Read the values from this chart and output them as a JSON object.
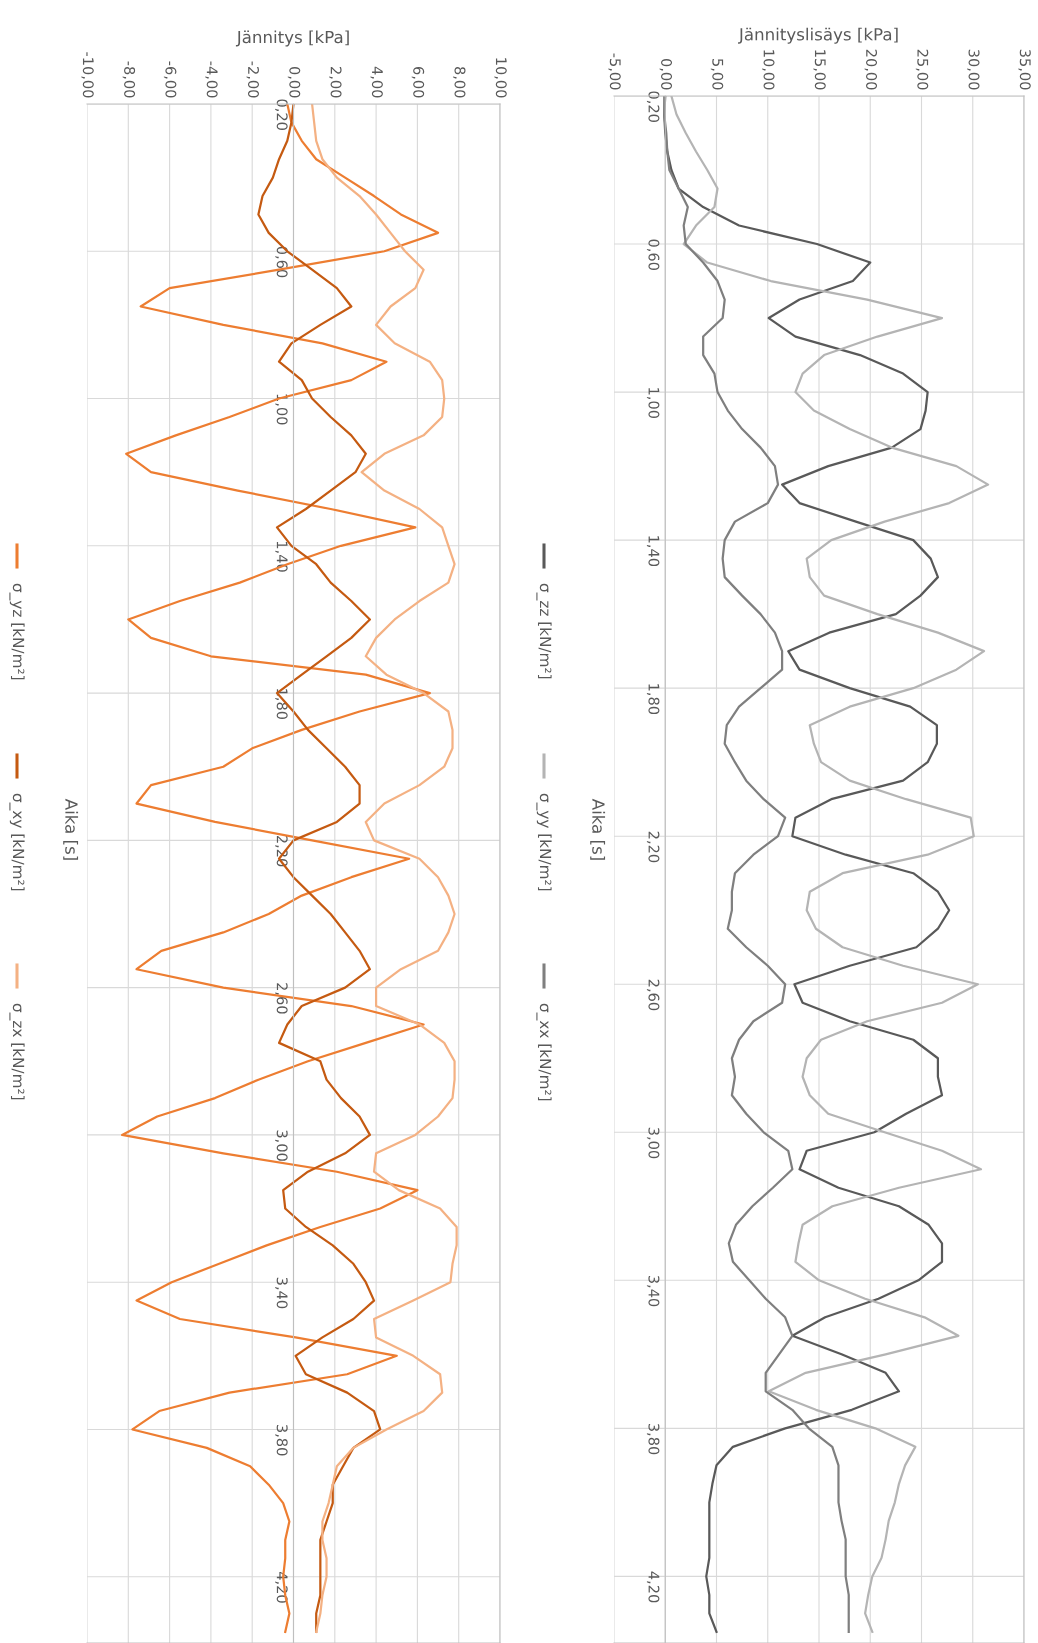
{
  "chart_data": [
    {
      "type": "line",
      "xlabel": "Jännityslisäys [kPa]",
      "ylabel": "Aika [s]",
      "grid": true,
      "legend": "left",
      "ylim": [
        4.38,
        0.2
      ],
      "yticks": [
        {
          "value": 0.2,
          "label": "0,20"
        },
        {
          "value": 0.6,
          "label": "0,60"
        },
        {
          "value": 1.0,
          "label": "1,00"
        },
        {
          "value": 1.4,
          "label": "1,40"
        },
        {
          "value": 1.8,
          "label": "1,80"
        },
        {
          "value": 2.2,
          "label": "2,20"
        },
        {
          "value": 2.6,
          "label": "2,60"
        },
        {
          "value": 3.0,
          "label": "3,00"
        },
        {
          "value": 3.4,
          "label": "3,40"
        },
        {
          "value": 3.8,
          "label": "3,80"
        },
        {
          "value": 4.2,
          "label": "4,20"
        }
      ],
      "xlim": [
        -5,
        35
      ],
      "xticks": [
        {
          "value": -5,
          "label": "-5,00"
        },
        {
          "value": 0,
          "label": "0,00"
        },
        {
          "value": 5,
          "label": "5,00"
        },
        {
          "value": 10,
          "label": "10,00"
        },
        {
          "value": 15,
          "label": "15,00"
        },
        {
          "value": 20,
          "label": "20,00"
        },
        {
          "value": 25,
          "label": "25,00"
        },
        {
          "value": 30,
          "label": "30,00"
        },
        {
          "value": 35,
          "label": "35,00"
        }
      ],
      "series": [
        {
          "name": "σ_zz [kN/m²]",
          "color": "#595959",
          "x": [
            0,
            -0.1,
            0,
            0.2,
            0.6,
            1.3,
            3.7,
            7.2,
            14.8,
            20.0,
            18.3,
            13.1,
            10.1,
            12.7,
            19.0,
            23.2,
            25.6,
            25.4,
            24.9,
            22.1,
            15.9,
            11.4,
            13.1,
            18.6,
            24.2,
            25.9,
            26.6,
            24.9,
            22.5,
            16.0,
            12.0,
            13.1,
            18.0,
            23.9,
            26.5,
            26.5,
            25.6,
            23.2,
            16.2,
            12.7,
            12.4,
            17.6,
            24.2,
            26.6,
            27.7,
            26.6,
            24.5,
            18.0,
            12.6,
            13.4,
            18.0,
            24.2,
            26.6,
            26.6,
            27.0,
            23.5,
            20.4,
            13.8,
            13.1,
            16.9,
            22.8,
            25.7,
            27.0,
            27.0,
            24.7,
            20.8,
            15.6,
            12.4,
            17.2,
            21.5,
            22.8,
            18.2,
            11.7,
            6.6,
            5.0,
            4.6,
            4.3,
            4.3,
            4.3,
            4.3,
            4.0,
            4.3,
            4.3,
            5.0
          ],
          "values": [
            0.2,
            0.25,
            0.3,
            0.35,
            0.4,
            0.45,
            0.5,
            0.55,
            0.6,
            0.65,
            0.7,
            0.75,
            0.8,
            0.85,
            0.9,
            0.95,
            1.0,
            1.05,
            1.1,
            1.15,
            1.2,
            1.25,
            1.3,
            1.35,
            1.4,
            1.45,
            1.5,
            1.55,
            1.6,
            1.65,
            1.7,
            1.75,
            1.8,
            1.85,
            1.9,
            1.95,
            2.0,
            2.05,
            2.1,
            2.15,
            2.2,
            2.25,
            2.3,
            2.35,
            2.4,
            2.45,
            2.5,
            2.55,
            2.6,
            2.65,
            2.7,
            2.75,
            2.8,
            2.85,
            2.9,
            2.95,
            3.0,
            3.05,
            3.1,
            3.15,
            3.2,
            3.25,
            3.3,
            3.35,
            3.4,
            3.45,
            3.5,
            3.55,
            3.6,
            3.65,
            3.7,
            3.75,
            3.8,
            3.85,
            3.9,
            3.95,
            4.0,
            4.05,
            4.1,
            4.15,
            4.2,
            4.25,
            4.3,
            4.35
          ]
        },
        {
          "name": "σ_yy [kN/m²]",
          "color": "#b4b4b4",
          "x": [
            0.6,
            1.1,
            2.0,
            3.0,
            4.1,
            5.1,
            4.8,
            3.0,
            1.8,
            4.1,
            10.3,
            19.7,
            27.0,
            20.7,
            15.5,
            13.4,
            12.7,
            14.5,
            18.0,
            22.1,
            28.4,
            31.5,
            27.7,
            21.4,
            16.2,
            13.8,
            14.1,
            15.5,
            20.7,
            26.6,
            31.1,
            28.4,
            24.2,
            18.0,
            14.1,
            14.5,
            15.2,
            18.0,
            23.5,
            29.8,
            30.1,
            25.6,
            17.3,
            14.1,
            13.8,
            14.7,
            17.3,
            23.2,
            30.5,
            27.0,
            19.7,
            15.2,
            13.8,
            13.4,
            14.1,
            15.9,
            21.4,
            27.0,
            30.8,
            22.8,
            16.3,
            13.4,
            13.0,
            12.7,
            15.0,
            19.5,
            25.3,
            28.6,
            21.5,
            13.7,
            10.1,
            14.7,
            20.5,
            24.4,
            23.4,
            22.8,
            22.4,
            21.8,
            21.5,
            21.1,
            20.2,
            19.8,
            19.5,
            20.2
          ],
          "values": [
            0.2,
            0.25,
            0.3,
            0.35,
            0.4,
            0.45,
            0.5,
            0.55,
            0.6,
            0.65,
            0.7,
            0.75,
            0.8,
            0.85,
            0.9,
            0.95,
            1.0,
            1.05,
            1.1,
            1.15,
            1.2,
            1.25,
            1.3,
            1.35,
            1.4,
            1.45,
            1.5,
            1.55,
            1.6,
            1.65,
            1.7,
            1.75,
            1.8,
            1.85,
            1.9,
            1.95,
            2.0,
            2.05,
            2.1,
            2.15,
            2.2,
            2.25,
            2.3,
            2.35,
            2.4,
            2.45,
            2.5,
            2.55,
            2.6,
            2.65,
            2.7,
            2.75,
            2.8,
            2.85,
            2.9,
            2.95,
            3.0,
            3.05,
            3.1,
            3.15,
            3.2,
            3.25,
            3.3,
            3.35,
            3.4,
            3.45,
            3.5,
            3.55,
            3.6,
            3.65,
            3.7,
            3.75,
            3.8,
            3.85,
            3.9,
            3.95,
            4.0,
            4.05,
            4.1,
            4.15,
            4.2,
            4.25,
            4.3,
            4.35
          ]
        },
        {
          "name": "σ_xx [kN/m²]",
          "color": "#7f7f7f",
          "x": [
            -0.1,
            -0.1,
            0.1,
            0.2,
            0.4,
            1.3,
            2.2,
            1.8,
            2.0,
            3.7,
            5.1,
            5.8,
            5.6,
            3.7,
            3.7,
            4.8,
            5.1,
            6.1,
            7.5,
            9.3,
            10.7,
            11.0,
            10.0,
            6.8,
            5.8,
            5.6,
            5.8,
            7.5,
            9.3,
            10.7,
            11.4,
            11.4,
            9.3,
            7.2,
            6.0,
            5.8,
            6.8,
            7.9,
            9.6,
            11.7,
            11.0,
            8.6,
            6.8,
            6.5,
            6.5,
            6.1,
            7.9,
            10.0,
            11.7,
            11.4,
            8.6,
            7.2,
            6.5,
            6.8,
            6.5,
            7.9,
            9.6,
            12.0,
            12.4,
            10.5,
            8.5,
            6.9,
            6.2,
            6.6,
            8.2,
            9.8,
            11.7,
            12.4,
            11.1,
            9.8,
            9.8,
            12.4,
            14.0,
            16.3,
            16.9,
            16.9,
            16.9,
            17.2,
            17.6,
            17.6,
            17.6,
            17.9,
            17.9,
            17.9
          ],
          "values": [
            0.2,
            0.25,
            0.3,
            0.35,
            0.4,
            0.45,
            0.5,
            0.55,
            0.6,
            0.65,
            0.7,
            0.75,
            0.8,
            0.85,
            0.9,
            0.95,
            1.0,
            1.05,
            1.1,
            1.15,
            1.2,
            1.25,
            1.3,
            1.35,
            1.4,
            1.45,
            1.5,
            1.55,
            1.6,
            1.65,
            1.7,
            1.75,
            1.8,
            1.85,
            1.9,
            1.95,
            2.0,
            2.05,
            2.1,
            2.15,
            2.2,
            2.25,
            2.3,
            2.35,
            2.4,
            2.45,
            2.5,
            2.55,
            2.6,
            2.65,
            2.7,
            2.75,
            2.8,
            2.85,
            2.9,
            2.95,
            3.0,
            3.05,
            3.1,
            3.15,
            3.2,
            3.25,
            3.3,
            3.35,
            3.4,
            3.45,
            3.5,
            3.55,
            3.6,
            3.65,
            3.7,
            3.75,
            3.8,
            3.85,
            3.9,
            3.95,
            4.0,
            4.05,
            4.1,
            4.15,
            4.2,
            4.25,
            4.3,
            4.35
          ]
        }
      ]
    },
    {
      "type": "line",
      "xlabel": "Jännitys [kPa]",
      "ylabel": "Aika [s]",
      "grid": true,
      "legend": "left",
      "ylim": [
        4.38,
        0.2
      ],
      "yticks": [
        {
          "value": 0.2,
          "label": "0,20"
        },
        {
          "value": 0.6,
          "label": "0,60"
        },
        {
          "value": 1.0,
          "label": "1,00"
        },
        {
          "value": 1.4,
          "label": "1,40"
        },
        {
          "value": 1.8,
          "label": "1,80"
        },
        {
          "value": 2.2,
          "label": "2,20"
        },
        {
          "value": 2.6,
          "label": "2,60"
        },
        {
          "value": 3.0,
          "label": "3,00"
        },
        {
          "value": 3.4,
          "label": "3,40"
        },
        {
          "value": 3.8,
          "label": "3,80"
        },
        {
          "value": 4.2,
          "label": "4,20"
        }
      ],
      "xlim": [
        -10,
        10
      ],
      "xticks": [
        {
          "value": -10,
          "label": "-10,00"
        },
        {
          "value": -8,
          "label": "-8,00"
        },
        {
          "value": -6,
          "label": "-6,00"
        },
        {
          "value": -4,
          "label": "-4,00"
        },
        {
          "value": -2,
          "label": "-2,00"
        },
        {
          "value": 0,
          "label": "0,00"
        },
        {
          "value": 2,
          "label": "2,00"
        },
        {
          "value": 4,
          "label": "4,00"
        },
        {
          "value": 6,
          "label": "6,00"
        },
        {
          "value": 8,
          "label": "8,00"
        },
        {
          "value": 10,
          "label": "10,00"
        }
      ],
      "series": [
        {
          "name": "σ_yz [kN/m²]",
          "color": "#ed7d31",
          "x": [
            -0.3,
            -0.1,
            0.4,
            1.1,
            2.5,
            3.9,
            5.2,
            7.0,
            4.4,
            -0.7,
            -6.0,
            -7.4,
            -3.4,
            1.4,
            4.5,
            2.8,
            -0.7,
            -3.1,
            -5.7,
            -8.1,
            -6.9,
            -2.7,
            1.8,
            5.9,
            2.3,
            -0.3,
            -2.6,
            -5.5,
            -8.0,
            -6.9,
            -4.0,
            3.5,
            6.6,
            3.2,
            0.4,
            -2.0,
            -3.4,
            -6.9,
            -7.6,
            -3.8,
            0.9,
            5.6,
            2.8,
            0.4,
            -1.2,
            -3.4,
            -6.4,
            -7.6,
            -3.4,
            2.8,
            6.3,
            3.5,
            0.7,
            -1.7,
            -3.8,
            -6.6,
            -8.3,
            -3.4,
            2.1,
            6.0,
            4.2,
            1.3,
            -1.3,
            -3.6,
            -5.9,
            -7.6,
            -5.5,
            0.1,
            5.0,
            2.6,
            -3.1,
            -6.5,
            -7.8,
            -4.2,
            -2.1,
            -1.2,
            -0.5,
            -0.2,
            -0.4,
            -0.4,
            -0.5,
            -0.4,
            -0.2,
            -0.4
          ],
          "values": [
            0.2,
            0.25,
            0.3,
            0.35,
            0.4,
            0.45,
            0.5,
            0.55,
            0.6,
            0.65,
            0.7,
            0.75,
            0.8,
            0.85,
            0.9,
            0.95,
            1.0,
            1.05,
            1.1,
            1.15,
            1.2,
            1.25,
            1.3,
            1.35,
            1.4,
            1.45,
            1.5,
            1.55,
            1.6,
            1.65,
            1.7,
            1.75,
            1.8,
            1.85,
            1.9,
            1.95,
            2.0,
            2.05,
            2.1,
            2.15,
            2.2,
            2.25,
            2.3,
            2.35,
            2.4,
            2.45,
            2.5,
            2.55,
            2.6,
            2.65,
            2.7,
            2.75,
            2.8,
            2.85,
            2.9,
            2.95,
            3.0,
            3.05,
            3.1,
            3.15,
            3.2,
            3.25,
            3.3,
            3.35,
            3.4,
            3.45,
            3.5,
            3.55,
            3.6,
            3.65,
            3.7,
            3.75,
            3.8,
            3.85,
            3.9,
            3.95,
            4.0,
            4.05,
            4.1,
            4.15,
            4.2,
            4.25,
            4.3,
            4.35
          ]
        },
        {
          "name": "σ_xy [kN/m²]",
          "color": "#c55a11",
          "x": [
            0,
            -0.1,
            -0.3,
            -0.7,
            -1.0,
            -1.5,
            -1.7,
            -1.2,
            -0.3,
            0.9,
            2.1,
            2.8,
            1.3,
            -0.1,
            -0.7,
            0.4,
            0.9,
            1.8,
            2.8,
            3.5,
            3.0,
            1.8,
            0.6,
            -0.8,
            -0.1,
            1.1,
            1.8,
            2.8,
            3.7,
            2.8,
            1.6,
            0.4,
            -0.8,
            0,
            0.7,
            1.6,
            2.5,
            3.2,
            3.2,
            2.1,
            0,
            -0.7,
            0,
            0.9,
            1.8,
            2.5,
            3.2,
            3.7,
            2.5,
            0.4,
            -0.3,
            -0.7,
            1.3,
            1.6,
            2.3,
            3.2,
            3.7,
            2.5,
            0.7,
            -0.5,
            -0.4,
            0.6,
            1.9,
            2.9,
            3.5,
            3.9,
            2.9,
            1.4,
            0.1,
            0.6,
            2.6,
            3.9,
            4.2,
            2.9,
            2.4,
            1.9,
            1.9,
            1.6,
            1.3,
            1.3,
            1.3,
            1.3,
            1.1,
            1.1
          ],
          "values": [
            0.2,
            0.25,
            0.3,
            0.35,
            0.4,
            0.45,
            0.5,
            0.55,
            0.6,
            0.65,
            0.7,
            0.75,
            0.8,
            0.85,
            0.9,
            0.95,
            1.0,
            1.05,
            1.1,
            1.15,
            1.2,
            1.25,
            1.3,
            1.35,
            1.4,
            1.45,
            1.5,
            1.55,
            1.6,
            1.65,
            1.7,
            1.75,
            1.8,
            1.85,
            1.9,
            1.95,
            2.0,
            2.05,
            2.1,
            2.15,
            2.2,
            2.25,
            2.3,
            2.35,
            2.4,
            2.45,
            2.5,
            2.55,
            2.6,
            2.65,
            2.7,
            2.75,
            2.8,
            2.85,
            2.9,
            2.95,
            3.0,
            3.05,
            3.1,
            3.15,
            3.2,
            3.25,
            3.3,
            3.35,
            3.4,
            3.45,
            3.5,
            3.55,
            3.6,
            3.65,
            3.7,
            3.75,
            3.8,
            3.85,
            3.9,
            3.95,
            4.0,
            4.05,
            4.1,
            4.15,
            4.2,
            4.25,
            4.3,
            4.35
          ]
        },
        {
          "name": "σ_zx [kN/m²]",
          "color": "#f4b183",
          "x": [
            0.9,
            1.0,
            1.1,
            1.4,
            2.1,
            3.2,
            4.0,
            4.7,
            5.4,
            6.3,
            5.9,
            4.7,
            4.0,
            4.9,
            6.6,
            7.2,
            7.3,
            7.2,
            6.3,
            4.4,
            3.3,
            4.4,
            6.1,
            7.2,
            7.5,
            7.8,
            7.5,
            6.1,
            4.9,
            4.0,
            3.5,
            4.5,
            6.3,
            7.5,
            7.7,
            7.7,
            7.3,
            6.1,
            4.4,
            3.5,
            3.9,
            6.1,
            7.0,
            7.5,
            7.8,
            7.5,
            7.0,
            5.2,
            4.0,
            4.0,
            6.1,
            7.3,
            7.8,
            7.8,
            7.7,
            7.0,
            5.9,
            4.0,
            3.9,
            5.1,
            7.1,
            7.9,
            7.9,
            7.7,
            7.6,
            5.8,
            3.9,
            4.0,
            5.8,
            7.1,
            7.2,
            6.3,
            4.5,
            2.9,
            2.1,
            1.9,
            1.7,
            1.4,
            1.4,
            1.6,
            1.6,
            1.4,
            1.3,
            1.1
          ],
          "values": [
            0.2,
            0.25,
            0.3,
            0.35,
            0.4,
            0.45,
            0.5,
            0.55,
            0.6,
            0.65,
            0.7,
            0.75,
            0.8,
            0.85,
            0.9,
            0.95,
            1.0,
            1.05,
            1.1,
            1.15,
            1.2,
            1.25,
            1.3,
            1.35,
            1.4,
            1.45,
            1.5,
            1.55,
            1.6,
            1.65,
            1.7,
            1.75,
            1.8,
            1.85,
            1.9,
            1.95,
            2.0,
            2.05,
            2.1,
            2.15,
            2.2,
            2.25,
            2.3,
            2.35,
            2.4,
            2.45,
            2.5,
            2.55,
            2.6,
            2.65,
            2.7,
            2.75,
            2.8,
            2.85,
            2.9,
            2.95,
            3.0,
            3.05,
            3.1,
            3.15,
            3.2,
            3.25,
            3.3,
            3.35,
            3.4,
            3.45,
            3.5,
            3.55,
            3.6,
            3.65,
            3.7,
            3.75,
            3.8,
            3.85,
            3.9,
            3.95,
            4.0,
            4.05,
            4.1,
            4.15,
            4.2,
            4.25,
            4.3,
            4.35
          ]
        }
      ]
    }
  ]
}
